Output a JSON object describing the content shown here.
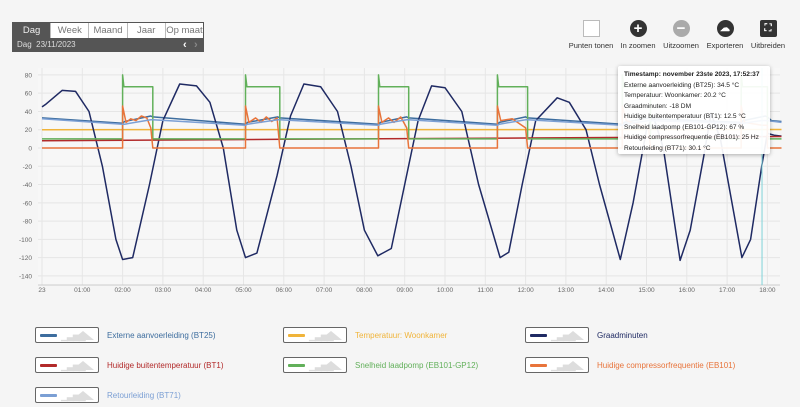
{
  "tabs": [
    "Dag",
    "Week",
    "Maand",
    "Jaar",
    "Op maat"
  ],
  "active_tab": "Dag",
  "date_row": {
    "label": "Dag",
    "date": "23/11/2023",
    "prev": "‹",
    "next": "›"
  },
  "toolbar": [
    {
      "label": "Punten tonen",
      "icon": "checkbox-icon"
    },
    {
      "label": "In zoomen",
      "icon": "plus-icon"
    },
    {
      "label": "Uitzoomen",
      "icon": "minus-icon"
    },
    {
      "label": "Exporteren",
      "icon": "cloud-download-icon"
    },
    {
      "label": "Uitbreiden",
      "icon": "expand-icon"
    }
  ],
  "tooltip": {
    "title": "Timestamp: november 23ste 2023, 17:52:37",
    "lines": [
      "Externe aanvoerleiding (BT25): 34.5 °C",
      "Temperatuur: Woonkamer: 20.2 °C",
      "Graadminuten: -18 DM",
      "Huidige buitentemperatuur (BT1): 12.5 °C",
      "Snelheid laadpomp (EB101-GP12): 67 %",
      "Huidige compressorfrequentie (EB101): 25 Hz",
      "Retourleiding (BT71): 30.1 °C"
    ]
  },
  "chart_data": {
    "type": "line",
    "ylim": [
      -140,
      80
    ],
    "yticks": [
      80,
      60,
      40,
      20,
      0,
      -20,
      -40,
      -60,
      -80,
      -100,
      -120,
      -140
    ],
    "xlim_hours": [
      0,
      18.35
    ],
    "xticks": [
      "23",
      "01:00",
      "02:00",
      "03:00",
      "04:00",
      "05:00",
      "06:00",
      "07:00",
      "08:00",
      "09:00",
      "10:00",
      "11:00",
      "12:00",
      "13:00",
      "14:00",
      "15:00",
      "16:00",
      "17:00",
      "18:00"
    ],
    "grid": true,
    "cursor_time": "17:52",
    "legend_placement": "bottom",
    "series": [
      {
        "name": "Externe aanvoerleiding (BT25)",
        "color": "#3d6d9e",
        "points": [
          [
            "00:00",
            33
          ],
          [
            "02:00",
            27
          ],
          [
            "02:03",
            29
          ],
          [
            "02:42",
            35
          ],
          [
            "02:45",
            34
          ],
          [
            "05:03",
            26
          ],
          [
            "05:06",
            28
          ],
          [
            "05:51",
            34
          ],
          [
            "05:54",
            33
          ],
          [
            "08:21",
            26
          ],
          [
            "08:24",
            28
          ],
          [
            "09:03",
            34
          ],
          [
            "09:06",
            33
          ],
          [
            "11:18",
            26
          ],
          [
            "11:21",
            28
          ],
          [
            "12:00",
            34
          ],
          [
            "12:03",
            33
          ],
          [
            "14:24",
            26
          ],
          [
            "14:27",
            28
          ],
          [
            "15:03",
            33
          ],
          [
            "15:06",
            32
          ],
          [
            "17:21",
            28
          ],
          [
            "17:24",
            30
          ],
          [
            "17:57",
            35
          ],
          [
            "18:00",
            34
          ],
          [
            "18:06",
            30
          ],
          [
            "18:21",
            29
          ]
        ]
      },
      {
        "name": "Temperatuur: Woonkamer",
        "color": "#f0b43a",
        "points": [
          [
            "00:00",
            20
          ],
          [
            "18:21",
            20.2
          ]
        ]
      },
      {
        "name": "Graadminuten",
        "color": "#1f2a63",
        "points": [
          [
            "00:00",
            45
          ],
          [
            "00:06",
            48
          ],
          [
            "00:30",
            63
          ],
          [
            "00:50",
            62
          ],
          [
            "01:10",
            40
          ],
          [
            "01:30",
            -20
          ],
          [
            "01:50",
            -100
          ],
          [
            "02:00",
            -122
          ],
          [
            "02:15",
            -120
          ],
          [
            "02:40",
            -40
          ],
          [
            "03:00",
            30
          ],
          [
            "03:25",
            70
          ],
          [
            "03:50",
            68
          ],
          [
            "04:10",
            50
          ],
          [
            "04:30",
            0
          ],
          [
            "04:50",
            -90
          ],
          [
            "05:03",
            -120
          ],
          [
            "05:20",
            -115
          ],
          [
            "05:50",
            -30
          ],
          [
            "06:10",
            35
          ],
          [
            "06:30",
            70
          ],
          [
            "06:55",
            67
          ],
          [
            "07:20",
            40
          ],
          [
            "07:40",
            -20
          ],
          [
            "08:00",
            -90
          ],
          [
            "08:20",
            -118
          ],
          [
            "08:40",
            -110
          ],
          [
            "09:00",
            -40
          ],
          [
            "09:20",
            30
          ],
          [
            "09:40",
            68
          ],
          [
            "10:00",
            66
          ],
          [
            "10:25",
            40
          ],
          [
            "10:50",
            -40
          ],
          [
            "11:22",
            -120
          ],
          [
            "11:35",
            -114
          ],
          [
            "11:55",
            -40
          ],
          [
            "12:15",
            30
          ],
          [
            "12:47",
            55
          ],
          [
            "13:05",
            50
          ],
          [
            "13:30",
            20
          ],
          [
            "13:50",
            -40
          ],
          [
            "14:21",
            -122
          ],
          [
            "14:40",
            -60
          ],
          [
            "15:00",
            20
          ],
          [
            "15:10",
            35
          ],
          [
            "15:25",
            0
          ],
          [
            "15:50",
            -123
          ],
          [
            "16:05",
            -90
          ],
          [
            "16:25",
            -10
          ],
          [
            "16:36",
            38
          ],
          [
            "16:50",
            10
          ],
          [
            "17:22",
            -120
          ],
          [
            "17:35",
            -100
          ],
          [
            "17:52",
            -18
          ],
          [
            "18:00",
            16
          ],
          [
            "18:10",
            14
          ],
          [
            "18:21",
            13
          ]
        ]
      },
      {
        "name": "Huidige buitentemperatuur (BT1)",
        "color": "#b22a2a",
        "points": [
          [
            "00:00",
            8
          ],
          [
            "06:00",
            9.5
          ],
          [
            "12:00",
            11
          ],
          [
            "18:21",
            12.6
          ]
        ]
      },
      {
        "name": "Snelheid laadpomp (EB101-GP12)",
        "color": "#62b05a",
        "points": [
          [
            "00:00",
            10
          ],
          [
            "02:00",
            10
          ],
          [
            "02:00",
            80
          ],
          [
            "02:02",
            67
          ],
          [
            "02:45",
            67
          ],
          [
            "02:45",
            10
          ],
          [
            "05:03",
            10
          ],
          [
            "05:03",
            80
          ],
          [
            "05:05",
            67
          ],
          [
            "05:54",
            67
          ],
          [
            "05:54",
            10
          ],
          [
            "08:21",
            10
          ],
          [
            "08:21",
            80
          ],
          [
            "08:23",
            67
          ],
          [
            "09:06",
            67
          ],
          [
            "09:06",
            10
          ],
          [
            "11:18",
            10
          ],
          [
            "11:18",
            80
          ],
          [
            "11:20",
            67
          ],
          [
            "12:03",
            67
          ],
          [
            "12:03",
            10
          ],
          [
            "14:24",
            10
          ],
          [
            "14:24",
            80
          ],
          [
            "14:26",
            67
          ],
          [
            "15:06",
            67
          ],
          [
            "15:06",
            10
          ],
          [
            "17:21",
            10
          ],
          [
            "17:21",
            80
          ],
          [
            "17:23",
            67
          ],
          [
            "18:00",
            67
          ],
          [
            "18:00",
            10
          ],
          [
            "18:21",
            10
          ]
        ]
      },
      {
        "name": "Huidige compressorfrequentie (EB101)",
        "color": "#e8743b",
        "points": [
          [
            "00:00",
            0
          ],
          [
            "02:00",
            0
          ],
          [
            "02:00",
            46
          ],
          [
            "02:05",
            28
          ],
          [
            "02:12",
            32
          ],
          [
            "02:20",
            30
          ],
          [
            "02:28",
            35
          ],
          [
            "02:36",
            33
          ],
          [
            "02:42",
            22
          ],
          [
            "02:45",
            0
          ],
          [
            "05:03",
            0
          ],
          [
            "05:03",
            46
          ],
          [
            "05:08",
            28
          ],
          [
            "05:18",
            33
          ],
          [
            "05:26",
            28
          ],
          [
            "05:34",
            34
          ],
          [
            "05:42",
            29
          ],
          [
            "05:50",
            33
          ],
          [
            "05:54",
            0
          ],
          [
            "08:21",
            0
          ],
          [
            "08:21",
            46
          ],
          [
            "08:26",
            28
          ],
          [
            "08:36",
            33
          ],
          [
            "08:44",
            28
          ],
          [
            "08:54",
            34
          ],
          [
            "09:03",
            22
          ],
          [
            "09:06",
            0
          ],
          [
            "11:18",
            0
          ],
          [
            "11:18",
            46
          ],
          [
            "11:23",
            30
          ],
          [
            "11:40",
            32
          ],
          [
            "12:00",
            22
          ],
          [
            "12:03",
            0
          ],
          [
            "14:24",
            0
          ],
          [
            "14:24",
            46
          ],
          [
            "14:30",
            30
          ],
          [
            "15:03",
            22
          ],
          [
            "15:06",
            0
          ],
          [
            "17:21",
            0
          ],
          [
            "17:21",
            46
          ],
          [
            "17:26",
            28
          ],
          [
            "17:52",
            25
          ],
          [
            "18:00",
            25
          ],
          [
            "18:00",
            0
          ],
          [
            "18:21",
            0
          ]
        ]
      },
      {
        "name": "Retourleiding (BT71)",
        "color": "#7b9fd4",
        "points": [
          [
            "00:00",
            32
          ],
          [
            "02:00",
            26
          ],
          [
            "02:03",
            26
          ],
          [
            "02:42",
            31
          ],
          [
            "02:45",
            31
          ],
          [
            "05:03",
            25
          ],
          [
            "05:06",
            26
          ],
          [
            "05:51",
            31
          ],
          [
            "05:54",
            31
          ],
          [
            "08:21",
            25
          ],
          [
            "08:24",
            26
          ],
          [
            "09:03",
            31
          ],
          [
            "09:06",
            31
          ],
          [
            "11:18",
            25
          ],
          [
            "11:21",
            26
          ],
          [
            "12:00",
            31
          ],
          [
            "12:03",
            31
          ],
          [
            "14:24",
            25
          ],
          [
            "14:27",
            26
          ],
          [
            "15:03",
            30
          ],
          [
            "15:06",
            30
          ],
          [
            "17:21",
            27
          ],
          [
            "17:24",
            27
          ],
          [
            "17:52",
            30.1
          ],
          [
            "18:00",
            30
          ],
          [
            "18:21",
            28
          ]
        ]
      }
    ]
  }
}
